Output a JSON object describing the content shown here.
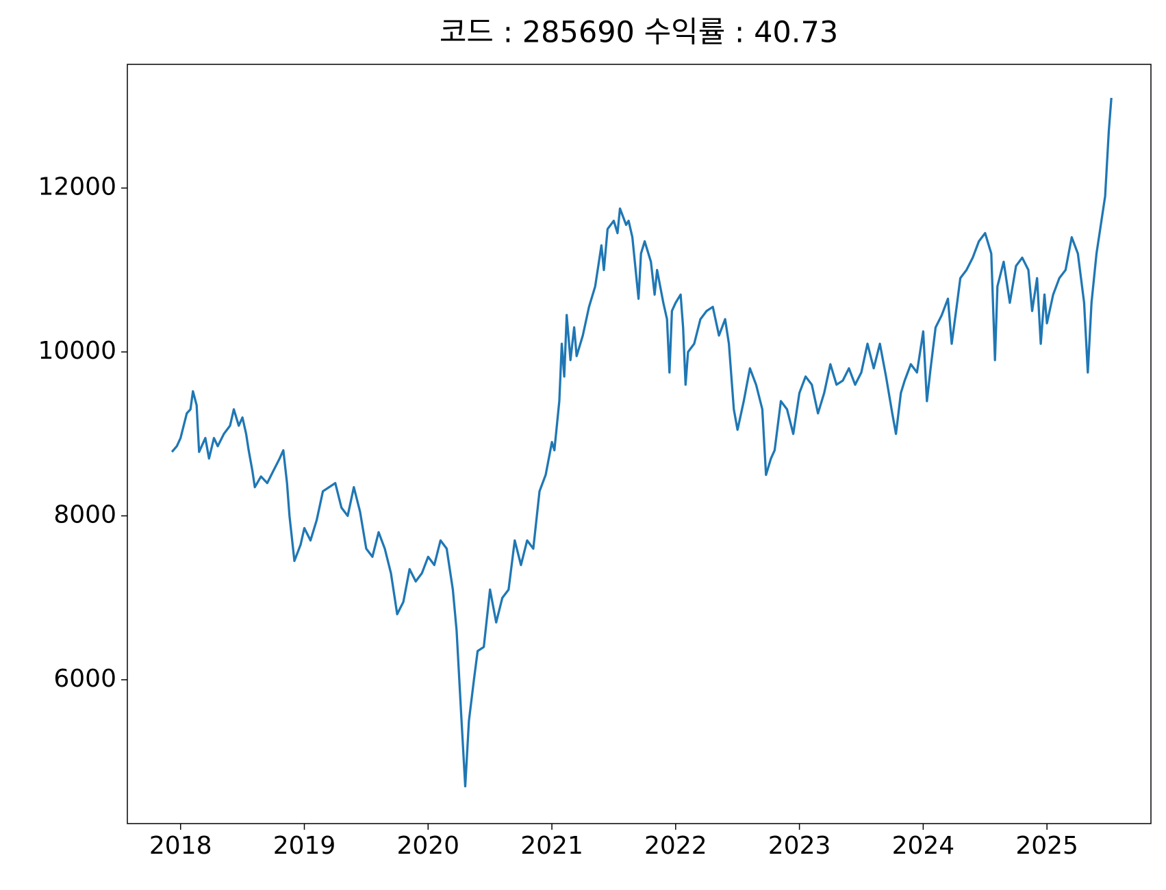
{
  "chart_data": {
    "type": "line",
    "title": "코드 : 285690 수익률 : 40.73",
    "x": [
      2017.93,
      2017.97,
      2018.0,
      2018.05,
      2018.08,
      2018.1,
      2018.13,
      2018.15,
      2018.2,
      2018.23,
      2018.27,
      2018.3,
      2018.35,
      2018.4,
      2018.43,
      2018.47,
      2018.5,
      2018.53,
      2018.55,
      2018.58,
      2018.6,
      2018.65,
      2018.7,
      2018.75,
      2018.8,
      2018.83,
      2018.86,
      2018.88,
      2018.92,
      2018.97,
      2019.0,
      2019.05,
      2019.1,
      2019.15,
      2019.2,
      2019.25,
      2019.3,
      2019.35,
      2019.4,
      2019.45,
      2019.5,
      2019.55,
      2019.6,
      2019.65,
      2019.7,
      2019.75,
      2019.8,
      2019.85,
      2019.9,
      2019.95,
      2020.0,
      2020.05,
      2020.1,
      2020.15,
      2020.2,
      2020.23,
      2020.27,
      2020.3,
      2020.33,
      2020.37,
      2020.4,
      2020.45,
      2020.5,
      2020.55,
      2020.6,
      2020.65,
      2020.7,
      2020.75,
      2020.8,
      2020.85,
      2020.9,
      2020.95,
      2021.0,
      2021.02,
      2021.06,
      2021.08,
      2021.1,
      2021.12,
      2021.15,
      2021.18,
      2021.2,
      2021.25,
      2021.3,
      2021.35,
      2021.4,
      2021.42,
      2021.45,
      2021.5,
      2021.53,
      2021.55,
      2021.6,
      2021.62,
      2021.65,
      2021.7,
      2021.72,
      2021.75,
      2021.8,
      2021.83,
      2021.85,
      2021.9,
      2021.93,
      2021.95,
      2021.97,
      2022.0,
      2022.04,
      2022.06,
      2022.08,
      2022.1,
      2022.15,
      2022.2,
      2022.25,
      2022.3,
      2022.35,
      2022.4,
      2022.43,
      2022.47,
      2022.5,
      2022.55,
      2022.6,
      2022.65,
      2022.7,
      2022.73,
      2022.77,
      2022.8,
      2022.85,
      2022.9,
      2022.95,
      2023.0,
      2023.05,
      2023.1,
      2023.15,
      2023.2,
      2023.25,
      2023.3,
      2023.35,
      2023.4,
      2023.45,
      2023.5,
      2023.55,
      2023.6,
      2023.65,
      2023.7,
      2023.75,
      2023.78,
      2023.82,
      2023.85,
      2023.9,
      2023.95,
      2024.0,
      2024.03,
      2024.06,
      2024.1,
      2024.15,
      2024.2,
      2024.23,
      2024.27,
      2024.3,
      2024.35,
      2024.4,
      2024.45,
      2024.5,
      2024.55,
      2024.58,
      2024.6,
      2024.65,
      2024.7,
      2024.75,
      2024.8,
      2024.85,
      2024.88,
      2024.92,
      2024.95,
      2024.98,
      2025.0,
      2025.05,
      2025.1,
      2025.15,
      2025.2,
      2025.25,
      2025.3,
      2025.33,
      2025.36,
      2025.4,
      2025.43,
      2025.47,
      2025.5,
      2025.52
    ],
    "series": [
      {
        "color": "#1f77b4",
        "values": [
          8780,
          8850,
          8950,
          9250,
          9300,
          9520,
          9350,
          8780,
          8950,
          8700,
          8950,
          8850,
          9000,
          9100,
          9300,
          9100,
          9200,
          9000,
          8800,
          8550,
          8350,
          8480,
          8400,
          8550,
          8700,
          8800,
          8400,
          8000,
          7450,
          7650,
          7850,
          7700,
          7950,
          8300,
          8350,
          8400,
          8100,
          8000,
          8350,
          8050,
          7600,
          7500,
          7800,
          7600,
          7300,
          6800,
          6950,
          7350,
          7200,
          7300,
          7500,
          7400,
          7700,
          7600,
          7100,
          6600,
          5500,
          4700,
          5500,
          6000,
          6350,
          6400,
          7100,
          6700,
          7000,
          7100,
          7700,
          7400,
          7700,
          7600,
          8300,
          8500,
          8900,
          8800,
          9400,
          10100,
          9700,
          10450,
          9900,
          10300,
          9950,
          10200,
          10550,
          10800,
          11300,
          11000,
          11500,
          11600,
          11450,
          11750,
          11550,
          11600,
          11400,
          10650,
          11200,
          11350,
          11100,
          10700,
          11000,
          10600,
          10400,
          9750,
          10500,
          10600,
          10700,
          10300,
          9600,
          10000,
          10100,
          10400,
          10500,
          10550,
          10200,
          10400,
          10100,
          9300,
          9050,
          9400,
          9800,
          9600,
          9300,
          8500,
          8700,
          8800,
          9400,
          9300,
          9000,
          9500,
          9700,
          9600,
          9250,
          9500,
          9850,
          9600,
          9650,
          9800,
          9600,
          9750,
          10100,
          9800,
          10100,
          9700,
          9250,
          9000,
          9500,
          9650,
          9850,
          9750,
          10250,
          9400,
          9800,
          10300,
          10450,
          10650,
          10100,
          10550,
          10900,
          11000,
          11150,
          11350,
          11450,
          11200,
          9900,
          10800,
          11100,
          10600,
          11050,
          11150,
          11000,
          10500,
          10900,
          10100,
          10700,
          10350,
          10700,
          10900,
          11000,
          11400,
          11200,
          10600,
          9750,
          10600,
          11200,
          11500,
          11900,
          12700,
          13100
        ]
      }
    ],
    "xlim": [
      2017.57,
      2025.84
    ],
    "xticks": [
      2018,
      2019,
      2020,
      2021,
      2022,
      2023,
      2024,
      2025
    ],
    "ylim": [
      4245,
      13509
    ],
    "yticks": [
      6000,
      8000,
      10000,
      12000
    ]
  }
}
